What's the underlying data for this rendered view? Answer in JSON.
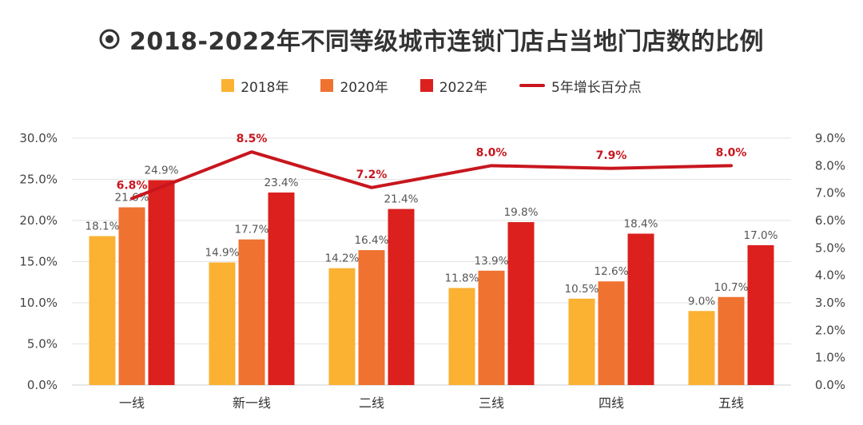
{
  "title": "2018-2022年不同等级城市连锁门店占当地门店数的比例",
  "colors": {
    "s2018": "#FBB131",
    "s2020": "#EF7231",
    "s2022": "#DB201E",
    "line": "#C8161E",
    "grid": "#E3E3E3",
    "icon": "#333333"
  },
  "legend": {
    "s2018": "2018年",
    "s2020": "2020年",
    "s2022": "2022年",
    "line": "5年增长百分点"
  },
  "chart_data": {
    "type": "bar",
    "title": "2018-2022年不同等级城市连锁门店占当地门店数的比例",
    "categories": [
      "一线",
      "新一线",
      "二线",
      "三线",
      "四线",
      "五线"
    ],
    "series": [
      {
        "name": "2018年",
        "type": "bar",
        "axis": "left",
        "values": [
          18.1,
          14.9,
          14.2,
          11.8,
          10.5,
          9.0
        ],
        "labels": [
          "18.1%",
          "14.9%",
          "14.2%",
          "11.8%",
          "10.5%",
          "9.0%"
        ]
      },
      {
        "name": "2020年",
        "type": "bar",
        "axis": "left",
        "values": [
          21.6,
          17.7,
          16.4,
          13.9,
          12.6,
          10.7
        ],
        "labels": [
          "21.6%",
          "17.7%",
          "16.4%",
          "13.9%",
          "12.6%",
          "10.7%"
        ]
      },
      {
        "name": "2022年",
        "type": "bar",
        "axis": "left",
        "values": [
          24.9,
          23.4,
          21.4,
          19.8,
          18.4,
          17.0
        ],
        "labels": [
          "24.9%",
          "23.4%",
          "21.4%",
          "19.8%",
          "18.4%",
          "17.0%"
        ]
      },
      {
        "name": "5年增长百分点",
        "type": "line",
        "axis": "right",
        "values": [
          6.8,
          8.5,
          7.2,
          8.0,
          7.9,
          8.0
        ],
        "labels": [
          "6.8%",
          "8.5%",
          "7.2%",
          "8.0%",
          "7.9%",
          "8.0%"
        ]
      }
    ],
    "y_left": {
      "lim": [
        0,
        30
      ],
      "ticks": [
        0,
        5,
        10,
        15,
        20,
        25,
        30
      ],
      "tick_labels": [
        "0.0%",
        "5.0%",
        "10.0%",
        "15.0%",
        "20.0%",
        "25.0%",
        "30.0%"
      ]
    },
    "y_right": {
      "lim": [
        0,
        9
      ],
      "ticks": [
        0,
        1,
        2,
        3,
        4,
        5,
        6,
        7,
        8,
        9
      ],
      "tick_labels": [
        "0.0%",
        "1.0%",
        "2.0%",
        "3.0%",
        "4.0%",
        "5.0%",
        "6.0%",
        "7.0%",
        "8.0%",
        "9.0%"
      ]
    },
    "grid": true,
    "legend_position": "top"
  }
}
